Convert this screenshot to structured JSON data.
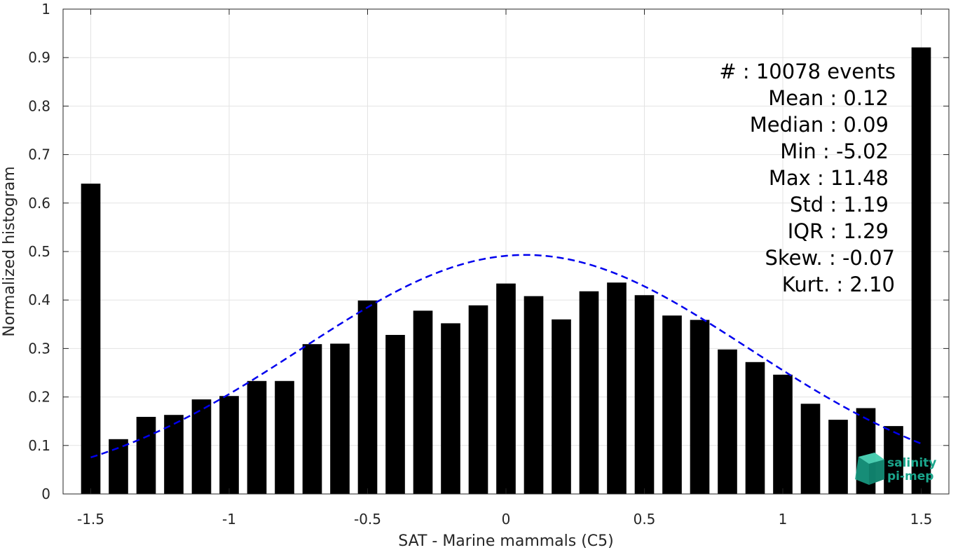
{
  "chart_data": {
    "type": "bar",
    "xlabel": "SAT - Marine mammals (C5)",
    "ylabel": "Normalized histogram",
    "xlim": [
      -1.6,
      1.6
    ],
    "ylim": [
      0,
      1
    ],
    "xticks": [
      "-1.5",
      "-1",
      "-0.5",
      "0",
      "0.5",
      "1",
      "1.5"
    ],
    "yticks": [
      "0",
      "0.1",
      "0.2",
      "0.3",
      "0.4",
      "0.5",
      "0.6",
      "0.7",
      "0.8",
      "0.9",
      "1"
    ],
    "grid": true,
    "bar_color": "#000000",
    "bar_width": 0.07,
    "x": [
      -1.5,
      -1.4,
      -1.3,
      -1.2,
      -1.1,
      -1.0,
      -0.9,
      -0.8,
      -0.7,
      -0.6,
      -0.5,
      -0.4,
      -0.3,
      -0.2,
      -0.1,
      0.0,
      0.1,
      0.2,
      0.3,
      0.4,
      0.5,
      0.6,
      0.7,
      0.8,
      0.9,
      1.0,
      1.1,
      1.2,
      1.3,
      1.4,
      1.5
    ],
    "values": [
      0.64,
      0.113,
      0.159,
      0.163,
      0.195,
      0.202,
      0.233,
      0.233,
      0.309,
      0.31,
      0.399,
      0.328,
      0.378,
      0.352,
      0.389,
      0.434,
      0.408,
      0.36,
      0.418,
      0.436,
      0.41,
      0.368,
      0.359,
      0.298,
      0.272,
      0.246,
      0.186,
      0.153,
      0.177,
      0.14,
      0.921
    ],
    "fit_curve": {
      "style": "dashed",
      "color": "#0000ee",
      "mean": 0.07,
      "std": 0.81,
      "peak": 0.493,
      "x_range": [
        -1.5,
        1.5
      ]
    },
    "annotation": [
      "#  : 10078 events",
      "Mean : 0.12",
      "Median : 0.09",
      "Min : -5.02",
      "Max : 11.48",
      "Std : 1.19",
      "IQR : 1.29",
      "Skew. : -0.07",
      "Kurt. : 2.10"
    ]
  },
  "logo": {
    "line1": "salinity",
    "line2": "pi-mep",
    "color": "#1aa68c"
  }
}
